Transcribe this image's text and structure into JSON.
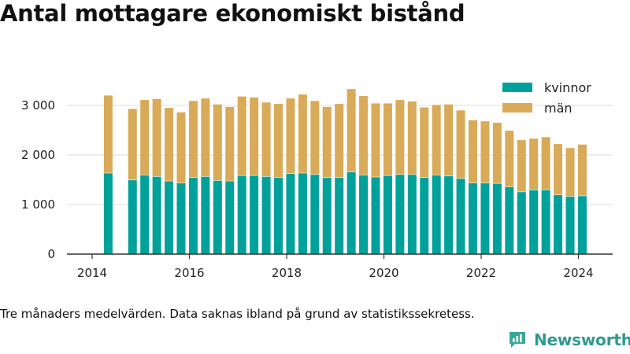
{
  "header": {
    "title": "Antal mottagare ekonomiskt bistånd"
  },
  "chart_data": {
    "type": "bar",
    "stacked": true,
    "title": "Antal mottagare ekonomiskt bistånd",
    "xlabel": "",
    "ylabel": "",
    "ylim": [
      0,
      3500
    ],
    "yticks": [
      0,
      1000,
      2000,
      3000
    ],
    "ytick_labels": [
      "0",
      "1 000",
      "2 000",
      "3 000"
    ],
    "xlim": [
      2013.5,
      2024.75
    ],
    "xticks": [
      2014,
      2016,
      2018,
      2020,
      2022,
      2024
    ],
    "xtick_labels": [
      "2014",
      "2016",
      "2018",
      "2020",
      "2022",
      "2024"
    ],
    "grid": "horizontal",
    "legend_position": "top-right",
    "x": [
      2014.33,
      2014.83,
      2015.08,
      2015.33,
      2015.58,
      2015.83,
      2016.08,
      2016.33,
      2016.58,
      2016.83,
      2017.08,
      2017.33,
      2017.58,
      2017.83,
      2018.08,
      2018.33,
      2018.58,
      2018.83,
      2019.08,
      2019.33,
      2019.58,
      2019.83,
      2020.08,
      2020.33,
      2020.58,
      2020.83,
      2021.08,
      2021.33,
      2021.58,
      2021.83,
      2022.08,
      2022.33,
      2022.58,
      2022.83,
      2023.08,
      2023.33,
      2023.58,
      2023.83,
      2024.08
    ],
    "series": [
      {
        "name": "kvinnor",
        "color": "#00a19a",
        "values": [
          1640,
          1500,
          1600,
          1570,
          1480,
          1440,
          1550,
          1570,
          1490,
          1480,
          1590,
          1590,
          1570,
          1550,
          1630,
          1640,
          1610,
          1550,
          1550,
          1660,
          1600,
          1560,
          1590,
          1610,
          1610,
          1550,
          1600,
          1580,
          1530,
          1440,
          1440,
          1430,
          1360,
          1260,
          1300,
          1300,
          1200,
          1170,
          1180
        ]
      },
      {
        "name": "män",
        "color": "#d9aa58",
        "values": [
          1560,
          1430,
          1510,
          1560,
          1470,
          1420,
          1540,
          1570,
          1530,
          1490,
          1590,
          1570,
          1490,
          1480,
          1510,
          1580,
          1480,
          1420,
          1480,
          1670,
          1590,
          1480,
          1450,
          1500,
          1470,
          1410,
          1410,
          1440,
          1370,
          1260,
          1240,
          1220,
          1130,
          1040,
          1030,
          1060,
          1020,
          970,
          1030
        ]
      }
    ]
  },
  "footer": {
    "note": "Tre månaders medelvärden. Data saknas ibland på grund av statistikssekretess.",
    "brand_name": "Newsworthy"
  }
}
